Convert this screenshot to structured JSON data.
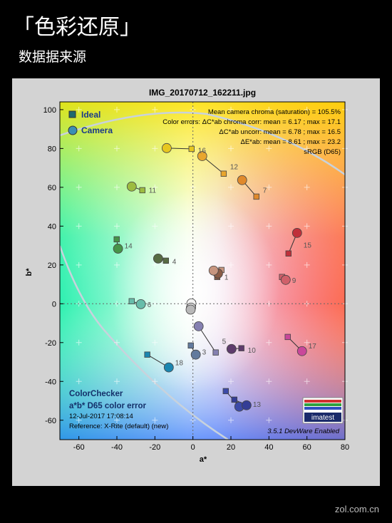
{
  "page": {
    "title": "「色彩还原」",
    "subtitle": "数据据来源",
    "watermark": "zol.com.cn"
  },
  "chart_data": {
    "type": "scatter",
    "title": "IMG_20170712_162211.jpg",
    "xlabel": "a*",
    "ylabel": "b*",
    "xlim": [
      -70,
      80
    ],
    "ylim": [
      -70,
      104
    ],
    "xticks": [
      -60,
      -40,
      -20,
      0,
      20,
      40,
      60,
      80
    ],
    "yticks": [
      -60,
      -40,
      -20,
      0,
      20,
      40,
      60,
      80,
      100
    ],
    "legend": "upper left",
    "series": [
      {
        "name": "Ideal",
        "marker": "square",
        "color": "#1f6a6e",
        "x": [
          12.8,
          15.0,
          -1.1,
          -14.2,
          12.0,
          -32.2,
          33.4,
          17.3,
          46.9,
          25.5,
          -26.6,
          16.2,
          21.8,
          -40.1,
          50.3,
          -0.7,
          49.9,
          -24.0,
          0,
          0,
          0
        ],
        "y": [
          13.8,
          17.4,
          -21.5,
          22.2,
          -25.1,
          1.3,
          55.2,
          -45.0,
          13.8,
          -22.9,
          58.5,
          67.0,
          -49.4,
          33.2,
          25.9,
          79.8,
          -17.1,
          -26.2,
          0,
          0,
          0
        ]
      },
      {
        "name": "Camera",
        "marker": "circle",
        "color": "#3b8fb4",
        "x": [
          13.2,
          10.9,
          1.5,
          -18.3,
          3.0,
          -27.4,
          25.9,
          24.4,
          48.8,
          20.3,
          -32.2,
          4.9,
          28.2,
          -39.4,
          54.8,
          -13.8,
          57.4,
          -12.7,
          -0.8,
          -1.0,
          -1.2
        ],
        "y": [
          15.6,
          17.1,
          -26.2,
          23.3,
          -11.6,
          -0.2,
          63.7,
          -53.0,
          12.3,
          -23.3,
          60.4,
          76.1,
          -52.3,
          28.4,
          36.5,
          80.2,
          -24.4,
          -32.8,
          0.2,
          -2.0,
          -3.0
        ]
      }
    ],
    "point_labels": [
      "1",
      null,
      "3",
      "4",
      "5",
      "6",
      "7",
      null,
      "9",
      "10",
      "11",
      "12",
      "13",
      "14",
      "15",
      "16",
      "17",
      "18",
      null,
      null,
      null
    ],
    "patch_colors": [
      "#8a5c47",
      "#c7957f",
      "#627a9d",
      "#576c43",
      "#8580b1",
      "#67bdaa",
      "#e08a2c",
      "#3c4aa8",
      "#d0606a",
      "#5e3c6c",
      "#9dbc40",
      "#e8a62e",
      "#343d96",
      "#469449",
      "#c0303a",
      "#e7c71f",
      "#c9479a",
      "#1b86b0",
      "#f3f3f2",
      "#d8d8d8",
      "#b8b8b8"
    ],
    "stats": [
      "Mean camera chroma (saturation) = 105.5%",
      "Color errors:  ΔC*ab chroma corr:  mean = 6.17 ;  max = 17.1",
      "ΔC*ab uncorr:  mean = 6.78 ;  max = 16.5",
      "ΔE*ab:  mean = 8.61 ;  max = 23.2",
      "sRGB (D65)"
    ],
    "info": [
      "ColorChecker",
      "a*b* D65 color error",
      "12-Jul-2017 17:08:14",
      "Reference: X-Rite (default) (new)"
    ],
    "version": "3.5.1  DevWare Enabled",
    "logo": "imatest"
  }
}
